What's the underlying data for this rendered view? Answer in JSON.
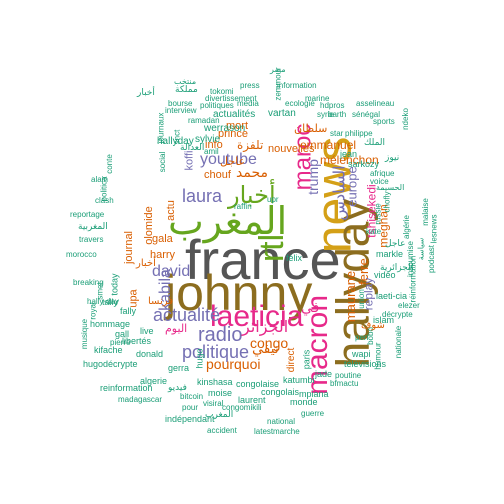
{
  "palette": {
    "gray": "#555555",
    "olive": "#8c6d1f",
    "gold": "#d4a017",
    "pink": "#e7298a",
    "purple": "#7570b3",
    "orange": "#d95f02",
    "green": "#66a61e",
    "teal": "#1b9e77"
  },
  "words": [
    {
      "text": "france",
      "color": "gray"
    },
    {
      "text": "johnny",
      "color": "olive"
    },
    {
      "text": "news",
      "color": "gold"
    },
    {
      "text": "hallyday",
      "color": "olive"
    },
    {
      "text": "المغرب",
      "color": "green"
    },
    {
      "text": "rtl",
      "color": "green"
    },
    {
      "text": "laeticia",
      "color": "pink"
    },
    {
      "text": "macron",
      "color": "pink"
    },
    {
      "text": "maroc",
      "color": "pink"
    },
    {
      "text": "أخبار",
      "color": "green"
    },
    {
      "text": "radio",
      "color": "purple"
    },
    {
      "text": "politique",
      "color": "purple"
    },
    {
      "text": "actualité",
      "color": "purple"
    },
    {
      "text": "youtube",
      "color": "purple"
    },
    {
      "text": "laura",
      "color": "purple"
    },
    {
      "text": "david",
      "color": "purple"
    },
    {
      "text": "kabila",
      "color": "purple"
    },
    {
      "text": "pourquoi",
      "color": "orange"
    },
    {
      "text": "congo",
      "color": "orange"
    },
    {
      "text": "الجزائر",
      "color": "pink"
    },
    {
      "text": "trump",
      "color": "purple"
    },
    {
      "text": "السادس",
      "color": "purple"
    },
    {
      "text": "europe",
      "color": "purple"
    },
    {
      "text": "ferre",
      "color": "orange"
    },
    {
      "text": "mélenchon",
      "color": "orange"
    },
    {
      "text": "emmanuel",
      "color": "orange"
    },
    {
      "text": "maurane",
      "color": "orange"
    },
    {
      "text": "meghan",
      "color": "orange"
    },
    {
      "text": "tshisekedi",
      "color": "pink"
    },
    {
      "text": "replay",
      "color": "purple"
    },
    {
      "text": "prince",
      "color": "orange"
    },
    {
      "text": "mort",
      "color": "orange"
    },
    {
      "text": "info",
      "color": "orange"
    },
    {
      "text": "chouf",
      "color": "orange"
    },
    {
      "text": "harry",
      "color": "orange"
    },
    {
      "text": "actu",
      "color": "orange"
    },
    {
      "text": "koffi",
      "color": "purple"
    },
    {
      "text": "محمد",
      "color": "orange"
    },
    {
      "text": "تلفزة",
      "color": "orange"
    },
    {
      "text": "عاجل",
      "color": "orange"
    },
    {
      "text": "olomide",
      "color": "orange"
    },
    {
      "text": "journal",
      "color": "orange"
    },
    {
      "text": "gala",
      "color": "orange"
    },
    {
      "text": "upa",
      "color": "orange"
    },
    {
      "text": "nouvelles",
      "color": "orange"
    },
    {
      "text": "vartan",
      "color": "teal"
    },
    {
      "text": "sylvie",
      "color": "teal"
    },
    {
      "text": "werrason",
      "color": "teal"
    },
    {
      "text": "actualités",
      "color": "teal"
    },
    {
      "text": "hallyday",
      "color": "teal"
    },
    {
      "text": "sarkozy",
      "color": "teal"
    },
    {
      "text": "jean",
      "color": "teal"
    },
    {
      "text": "direct",
      "color": "orange"
    },
    {
      "text": "paris",
      "color": "teal"
    },
    {
      "text": "katumbi",
      "color": "teal"
    },
    {
      "text": "jade",
      "color": "teal"
    },
    {
      "text": "télévisions",
      "color": "teal"
    },
    {
      "text": "mpiana",
      "color": "teal"
    },
    {
      "text": "congolais",
      "color": "teal"
    },
    {
      "text": "congolaise",
      "color": "teal"
    },
    {
      "text": "félix",
      "color": "teal"
    },
    {
      "text": "kinshasa",
      "color": "teal"
    },
    {
      "text": "hugo",
      "color": "teal"
    },
    {
      "text": "moise",
      "color": "teal"
    },
    {
      "text": "live",
      "color": "teal"
    },
    {
      "text": "libertés",
      "color": "teal"
    },
    {
      "text": "kifache",
      "color": "teal"
    },
    {
      "text": "donald",
      "color": "teal"
    },
    {
      "text": "fally",
      "color": "teal"
    },
    {
      "text": "tally",
      "color": "teal"
    },
    {
      "text": "gall",
      "color": "teal"
    },
    {
      "text": "today",
      "color": "teal"
    },
    {
      "text": "hommage",
      "color": "teal"
    },
    {
      "text": "musique",
      "color": "teal"
    },
    {
      "text": "algerie",
      "color": "teal"
    },
    {
      "text": "gerra",
      "color": "teal"
    },
    {
      "text": "hugodécrypte",
      "color": "teal"
    },
    {
      "text": "reinformation",
      "color": "teal"
    },
    {
      "text": "madagascar",
      "color": "teal"
    },
    {
      "text": "indépendant",
      "color": "teal"
    },
    {
      "text": "accident",
      "color": "teal"
    },
    {
      "text": "latest",
      "color": "teal"
    },
    {
      "text": "marche",
      "color": "teal"
    },
    {
      "text": "national",
      "color": "teal"
    },
    {
      "text": "congomikili",
      "color": "teal"
    },
    {
      "text": "monde",
      "color": "teal"
    },
    {
      "text": "laurent",
      "color": "teal"
    },
    {
      "text": "visiral",
      "color": "teal"
    },
    {
      "text": "bitcoin",
      "color": "teal"
    },
    {
      "text": "pour",
      "color": "teal"
    },
    {
      "text": "guerre",
      "color": "teal"
    },
    {
      "text": "bfmactu",
      "color": "teal"
    },
    {
      "text": "wapi",
      "color": "teal"
    },
    {
      "text": "pen",
      "color": "teal"
    },
    {
      "text": "poutine",
      "color": "teal"
    },
    {
      "text": "islam",
      "color": "teal"
    },
    {
      "text": "laeti-cia",
      "color": "teal"
    },
    {
      "text": "vidéo",
      "color": "teal"
    },
    {
      "text": "markle",
      "color": "teal"
    },
    {
      "text": "décrypte",
      "color": "teal"
    },
    {
      "text": "elezer",
      "color": "teal"
    },
    {
      "text": "afrique",
      "color": "teal"
    },
    {
      "text": "russie",
      "color": "teal"
    },
    {
      "text": "kate",
      "color": "teal"
    },
    {
      "text": "chofly",
      "color": "teal"
    },
    {
      "text": "voice",
      "color": "teal"
    },
    {
      "text": "nationale",
      "color": "teal"
    },
    {
      "text": "humour",
      "color": "teal"
    },
    {
      "text": "bobo",
      "color": "teal"
    },
    {
      "text": "union",
      "color": "teal"
    },
    {
      "text": "insoumise",
      "color": "teal"
    },
    {
      "text": "algérie",
      "color": "teal"
    },
    {
      "text": "malaise",
      "color": "teal"
    },
    {
      "text": "lesnews",
      "color": "teal"
    },
    {
      "text": "podcast",
      "color": "teal"
    },
    {
      "text": "réinformation",
      "color": "teal"
    },
    {
      "text": "ndeko",
      "color": "teal"
    },
    {
      "text": "sports",
      "color": "teal"
    },
    {
      "text": "philippe",
      "color": "teal"
    },
    {
      "text": "star",
      "color": "teal"
    },
    {
      "text": "barth",
      "color": "teal"
    },
    {
      "text": "sénégal",
      "color": "teal"
    },
    {
      "text": "asselineau",
      "color": "teal"
    },
    {
      "text": "syrie",
      "color": "teal"
    },
    {
      "text": "marine",
      "color": "teal"
    },
    {
      "text": "hdpros",
      "color": "teal"
    },
    {
      "text": "ecologie",
      "color": "teal"
    },
    {
      "text": "information",
      "color": "teal"
    },
    {
      "text": "zemmour",
      "color": "teal"
    },
    {
      "text": "press",
      "color": "teal"
    },
    {
      "text": "tokomi",
      "color": "teal"
    },
    {
      "text": "divertissement",
      "color": "teal"
    },
    {
      "text": "politiques",
      "color": "teal"
    },
    {
      "text": "média",
      "color": "teal"
    },
    {
      "text": "bourse",
      "color": "teal"
    },
    {
      "text": "ramadan",
      "color": "teal"
    },
    {
      "text": "interview",
      "color": "teal"
    },
    {
      "text": "journaux",
      "color": "teal"
    },
    {
      "text": "social",
      "color": "teal"
    },
    {
      "text": "alain",
      "color": "teal"
    },
    {
      "text": "clash",
      "color": "teal"
    },
    {
      "text": "reportage",
      "color": "teal"
    },
    {
      "text": "travers",
      "color": "teal"
    },
    {
      "text": "morocco",
      "color": "teal"
    },
    {
      "text": "breaking",
      "color": "teal"
    },
    {
      "text": "hally-day",
      "color": "teal"
    },
    {
      "text": "royal",
      "color": "teal"
    },
    {
      "text": "pierre",
      "color": "teal"
    },
    {
      "text": "smet",
      "color": "teal"
    },
    {
      "text": "snct",
      "color": "teal"
    },
    {
      "text": "amil",
      "color": "teal"
    },
    {
      "text": "upr",
      "color": "teal"
    },
    {
      "text": "raffin",
      "color": "teal"
    },
    {
      "text": "politica",
      "color": "teal"
    },
    {
      "text": "conte",
      "color": "teal"
    },
    {
      "text": "مملكة",
      "color": "teal"
    },
    {
      "text": "سلطان",
      "color": "orange"
    },
    {
      "text": "أخبار",
      "color": "teal"
    },
    {
      "text": "المغربية",
      "color": "teal"
    },
    {
      "text": "العدالة",
      "color": "teal"
    },
    {
      "text": "فرنسا",
      "color": "orange"
    },
    {
      "text": "اليوم",
      "color": "pink"
    },
    {
      "text": "تيفي",
      "color": "orange"
    },
    {
      "text": "في",
      "color": "pink"
    },
    {
      "text": "شوف",
      "color": "orange"
    },
    {
      "text": "الملك",
      "color": "teal"
    },
    {
      "text": "نيوز",
      "color": "teal"
    },
    {
      "text": "أخبار",
      "color": "orange"
    },
    {
      "text": "الجزائرية",
      "color": "teal"
    },
    {
      "text": "فيديو",
      "color": "teal"
    },
    {
      "text": "عاجل",
      "color": "teal"
    },
    {
      "text": "المغرب",
      "color": "teal"
    },
    {
      "text": "الحسيمة",
      "color": "teal"
    },
    {
      "text": "مصر",
      "color": "teal"
    },
    {
      "text": "منتخب",
      "color": "teal"
    },
    {
      "text": "سياسة",
      "color": "teal"
    }
  ]
}
